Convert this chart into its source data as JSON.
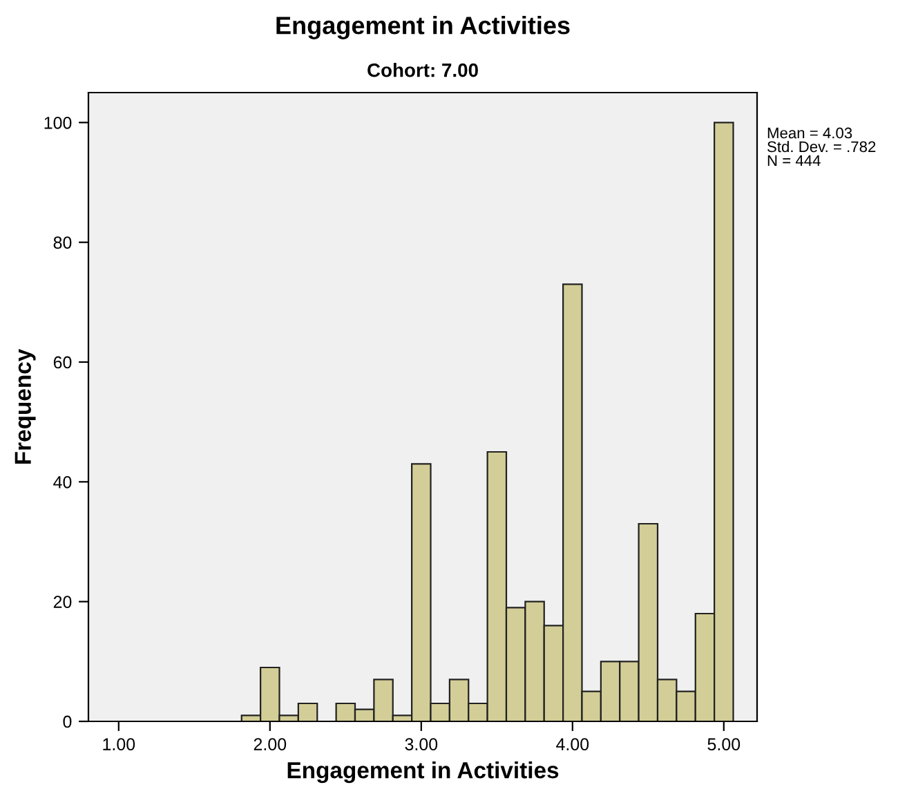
{
  "chart_data": {
    "type": "histogram",
    "title": "Engagement in Activities",
    "subtitle": "Cohort: 7.00",
    "xlabel": "Engagement in Activities",
    "ylabel": "Frequency",
    "bins": [
      1.8125,
      1.9375,
      2.0625,
      2.1875,
      2.3125,
      2.4375,
      2.5625,
      2.6875,
      2.8125,
      2.9375,
      3.0625,
      3.1875,
      3.3125,
      3.4375,
      3.5625,
      3.6875,
      3.8125,
      3.9375,
      4.0625,
      4.1875,
      4.3125,
      4.4375,
      4.5625,
      4.6875,
      4.8125,
      4.9375,
      5.0625
    ],
    "values": [
      1,
      9,
      1,
      3,
      0,
      3,
      2,
      7,
      1,
      43,
      3,
      7,
      3,
      45,
      19,
      20,
      16,
      73,
      5,
      10,
      10,
      33,
      7,
      5,
      18,
      100
    ],
    "color": "#d3ce97",
    "xlim": [
      0.8,
      5.22
    ],
    "ylim": [
      0,
      105
    ],
    "xticks": [
      {
        "value": 1,
        "label": "1.00"
      },
      {
        "value": 2,
        "label": "2.00"
      },
      {
        "value": 3,
        "label": "3.00"
      },
      {
        "value": 4,
        "label": "4.00"
      },
      {
        "value": 5,
        "label": "5.00"
      }
    ],
    "yticks": [
      0,
      20,
      40,
      60,
      80,
      100
    ],
    "grid": false,
    "annotations": [
      "Mean = 4.03\nStd. Dev. = .782\nN = 444"
    ]
  }
}
